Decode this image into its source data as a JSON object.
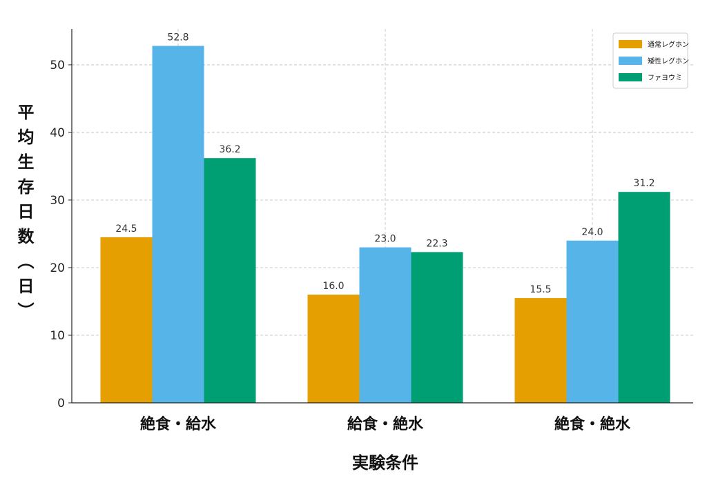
{
  "chart_data": {
    "type": "bar",
    "x_label": "実験条件",
    "y_label": "平均生存日数（日）",
    "categories": [
      "絶食・給水",
      "給食・絶水",
      "絶食・絶水"
    ],
    "series": [
      {
        "name": "通常レグホン",
        "color": "#e69f00",
        "values": [
          24.5,
          16,
          15.5
        ],
        "value_labels": [
          "24.5",
          "16.0",
          "15.5"
        ]
      },
      {
        "name": "矮性レグホン",
        "color": "#56b4e9",
        "values": [
          52.8,
          23,
          24
        ],
        "value_labels": [
          "52.8",
          "23.0",
          "24.0"
        ]
      },
      {
        "name": "ファヨウミ",
        "color": "#009e73",
        "values": [
          36.2,
          22.3,
          31.2
        ],
        "value_labels": [
          "36.2",
          "22.3",
          "31.2"
        ]
      }
    ],
    "ylim": [
      0,
      55.3
    ],
    "yticks": [
      0,
      10,
      20,
      30,
      40,
      50
    ],
    "grid": true,
    "legend": "upper right"
  }
}
